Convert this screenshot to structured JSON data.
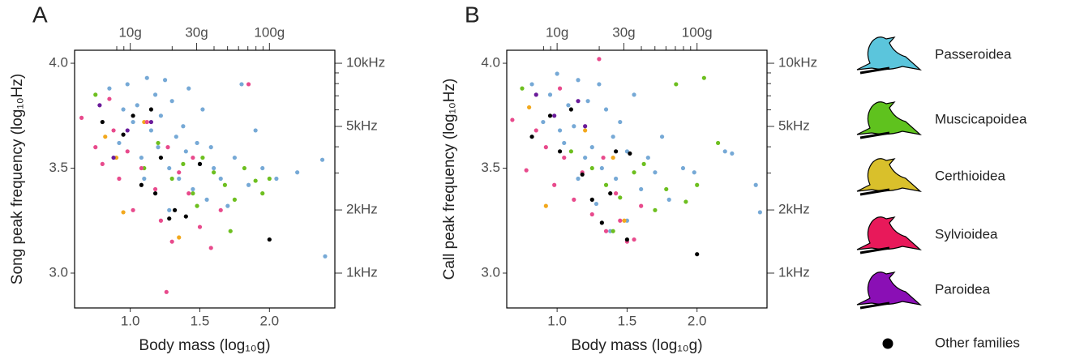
{
  "chart_data": [
    {
      "type": "scatter",
      "title": "A",
      "xlabel": "Body mass (log₁₀g)",
      "ylabel": "Song peak frequency (log₁₀Hz)",
      "xlim": [
        0.6,
        2.47
      ],
      "ylim": [
        2.834,
        4.062
      ],
      "xticks": [
        {
          "value": 1,
          "label": "1.0"
        },
        {
          "value": 1.5,
          "label": "1.5"
        },
        {
          "value": 2,
          "label": "2.0"
        }
      ],
      "yticks": [
        {
          "value": 3,
          "label": "3.0"
        },
        {
          "value": 3.5,
          "label": "3.5"
        },
        {
          "value": 4,
          "label": "4.0"
        }
      ],
      "x2ticks": [
        {
          "value": 1,
          "label": "10g"
        },
        {
          "value": 1.477,
          "label": "30g"
        },
        {
          "value": 2,
          "label": "100g"
        }
      ],
      "x2minor": [
        0.903,
        0.954,
        1.301,
        1.602,
        1.699,
        1.778,
        1.845,
        1.903,
        1.954
      ],
      "y2ticks": [
        {
          "value": 4,
          "label": "10kHz"
        },
        {
          "value": 3.699,
          "label": "5kHz"
        },
        {
          "value": 3.301,
          "label": "2kHz"
        },
        {
          "value": 3,
          "label": "1kHz"
        }
      ],
      "y2minor": [
        3.477,
        3.602,
        3.778,
        3.845,
        3.903,
        3.954
      ],
      "series": [
        {
          "name": "Passeroidea",
          "color": "#76a9d6",
          "legend_color": "#5bc5dc",
          "x": [
            0.85,
            0.92,
            0.98,
            1.02,
            1.05,
            1.08,
            1.12,
            1.15,
            1.18,
            1.2,
            1.22,
            1.25,
            1.28,
            1.3,
            1.33,
            1.35,
            1.38,
            1.4,
            1.42,
            1.45,
            1.48,
            1.5,
            1.52,
            1.55,
            1.58,
            1.6,
            1.65,
            1.7,
            1.75,
            1.8,
            1.85,
            1.9,
            1.95,
            2.05,
            2.2,
            2.38,
            2.4,
            1.28,
            1.1,
            0.95
          ],
          "y": [
            3.88,
            3.62,
            3.9,
            3.72,
            3.8,
            3.55,
            3.93,
            3.68,
            3.85,
            3.6,
            3.75,
            3.92,
            3.5,
            3.82,
            3.65,
            3.45,
            3.7,
            3.58,
            3.88,
            3.4,
            3.62,
            3.52,
            3.78,
            3.35,
            3.6,
            3.5,
            3.45,
            3.32,
            3.55,
            3.9,
            3.42,
            3.68,
            3.5,
            3.45,
            3.48,
            3.54,
            3.08,
            3.3,
            3.45,
            3.78
          ]
        },
        {
          "name": "Muscicapoidea",
          "color": "#6dbf1f",
          "legend_color": "#5fc21e",
          "x": [
            0.75,
            1.1,
            1.2,
            1.3,
            1.38,
            1.45,
            1.52,
            1.6,
            1.68,
            1.75,
            1.82,
            1.9,
            1.95,
            2.0,
            1.48,
            1.72
          ],
          "y": [
            3.85,
            3.5,
            3.62,
            3.45,
            3.52,
            3.38,
            3.55,
            3.48,
            3.42,
            3.35,
            3.5,
            3.44,
            3.38,
            3.45,
            3.32,
            3.2
          ]
        },
        {
          "name": "Certhioidea",
          "color": "#f2a81d",
          "legend_color": "#d9c02b",
          "x": [
            0.82,
            0.9,
            0.95,
            1.1,
            1.35
          ],
          "y": [
            3.65,
            3.55,
            3.29,
            3.72,
            3.17
          ]
        },
        {
          "name": "Sylvioidea",
          "color": "#e84a8c",
          "legend_color": "#e8195a",
          "x": [
            0.65,
            0.75,
            0.8,
            0.88,
            0.92,
            0.98,
            1.02,
            1.08,
            1.12,
            1.18,
            1.22,
            1.27,
            1.3,
            1.35,
            1.42,
            1.5,
            1.58,
            1.65,
            1.26,
            1.45,
            0.85,
            1.85
          ],
          "y": [
            3.74,
            3.6,
            3.52,
            3.68,
            3.45,
            3.58,
            3.3,
            3.5,
            3.72,
            3.4,
            3.25,
            3.6,
            3.15,
            3.48,
            3.38,
            3.22,
            3.12,
            3.3,
            2.91,
            3.55,
            3.83,
            3.9
          ]
        },
        {
          "name": "Paroidea",
          "color": "#6a1b9a",
          "legend_color": "#8a0fb5",
          "x": [
            0.78,
            0.88,
            0.98,
            1.15
          ],
          "y": [
            3.8,
            3.55,
            3.68,
            3.72
          ]
        },
        {
          "name": "Other families",
          "color": "#000000",
          "x": [
            0.8,
            0.95,
            1.02,
            1.15,
            1.18,
            1.22,
            1.28,
            1.4,
            1.5,
            2.0,
            1.32,
            1.08
          ],
          "y": [
            3.72,
            3.66,
            3.75,
            3.78,
            3.38,
            3.55,
            3.26,
            3.27,
            3.52,
            3.16,
            3.3,
            3.42
          ]
        }
      ]
    },
    {
      "type": "scatter",
      "title": "B",
      "xlabel": "Body mass (log₁₀g)",
      "ylabel": "Call peak frequency (log₁₀Hz)",
      "xlim": [
        0.64,
        2.5
      ],
      "ylim": [
        2.834,
        4.062
      ],
      "xticks": [
        {
          "value": 1,
          "label": "1.0"
        },
        {
          "value": 1.5,
          "label": "1.5"
        },
        {
          "value": 2,
          "label": "2.0"
        }
      ],
      "yticks": [
        {
          "value": 3,
          "label": "3.0"
        },
        {
          "value": 3.5,
          "label": "3.5"
        },
        {
          "value": 4,
          "label": "4.0"
        }
      ],
      "x2ticks": [
        {
          "value": 1,
          "label": "10g"
        },
        {
          "value": 1.477,
          "label": "30g"
        },
        {
          "value": 2,
          "label": "100g"
        }
      ],
      "x2minor": [
        0.903,
        0.954,
        1.301,
        1.602,
        1.699,
        1.778,
        1.845,
        1.903,
        1.954
      ],
      "y2ticks": [
        {
          "value": 4,
          "label": "10kHz"
        },
        {
          "value": 3.699,
          "label": "5kHz"
        },
        {
          "value": 3.301,
          "label": "2kHz"
        },
        {
          "value": 3,
          "label": "1kHz"
        }
      ],
      "y2minor": [
        3.477,
        3.602,
        3.778,
        3.845,
        3.903,
        3.954
      ],
      "series": [
        {
          "name": "Passeroidea",
          "color": "#76a9d6",
          "x": [
            0.82,
            0.9,
            0.95,
            1.0,
            1.05,
            1.08,
            1.12,
            1.15,
            1.2,
            1.22,
            1.25,
            1.3,
            1.32,
            1.35,
            1.4,
            1.42,
            1.45,
            1.5,
            1.55,
            1.6,
            1.65,
            1.7,
            1.75,
            1.8,
            1.9,
            1.98,
            2.2,
            2.25,
            2.42,
            2.45,
            1.28,
            1.15,
            1.38,
            1.5,
            1.02
          ],
          "y": [
            3.9,
            3.72,
            3.85,
            3.95,
            3.62,
            3.8,
            3.7,
            3.92,
            3.55,
            3.82,
            3.6,
            3.9,
            3.5,
            3.78,
            3.65,
            3.45,
            3.72,
            3.58,
            3.85,
            3.4,
            3.55,
            3.48,
            3.65,
            3.35,
            3.5,
            3.48,
            3.58,
            3.57,
            3.42,
            3.29,
            3.33,
            3.45,
            3.2,
            3.25,
            3.68
          ]
        },
        {
          "name": "Muscicapoidea",
          "color": "#6dbf1f",
          "x": [
            0.75,
            1.1,
            1.25,
            1.35,
            1.45,
            1.55,
            1.62,
            1.7,
            1.78,
            1.85,
            1.92,
            2.0,
            2.05,
            2.15,
            1.4
          ],
          "y": [
            3.88,
            3.58,
            3.5,
            3.42,
            3.36,
            3.48,
            3.52,
            3.3,
            3.4,
            3.9,
            3.34,
            3.42,
            3.93,
            3.62,
            3.2
          ]
        },
        {
          "name": "Certhioidea",
          "color": "#f2a81d",
          "x": [
            0.8,
            0.92,
            1.4,
            1.48,
            1.2
          ],
          "y": [
            3.79,
            3.32,
            3.55,
            3.25,
            3.68
          ]
        },
        {
          "name": "Sylvioidea",
          "color": "#e84a8c",
          "x": [
            0.68,
            0.78,
            0.85,
            0.92,
            0.98,
            1.05,
            1.12,
            1.18,
            1.25,
            1.3,
            1.35,
            1.42,
            1.5,
            1.6,
            1.33,
            1.45,
            1.55,
            1.02
          ],
          "y": [
            3.73,
            3.49,
            3.68,
            3.6,
            3.42,
            3.55,
            3.35,
            3.48,
            3.28,
            4.02,
            3.2,
            3.38,
            3.15,
            3.32,
            3.55,
            3.25,
            3.16,
            3.88
          ]
        },
        {
          "name": "Paroidea",
          "color": "#6a1b9a",
          "x": [
            0.85,
            0.98,
            1.15,
            1.2
          ],
          "y": [
            3.85,
            3.75,
            3.82,
            3.7
          ]
        },
        {
          "name": "Other families",
          "color": "#000000",
          "x": [
            0.82,
            1.02,
            1.1,
            1.18,
            1.25,
            1.32,
            1.42,
            1.5,
            1.52,
            2.0,
            1.38,
            0.95
          ],
          "y": [
            3.65,
            3.58,
            3.78,
            3.47,
            3.35,
            3.24,
            3.58,
            3.16,
            3.57,
            3.09,
            3.38,
            3.75
          ]
        }
      ]
    }
  ]
}
